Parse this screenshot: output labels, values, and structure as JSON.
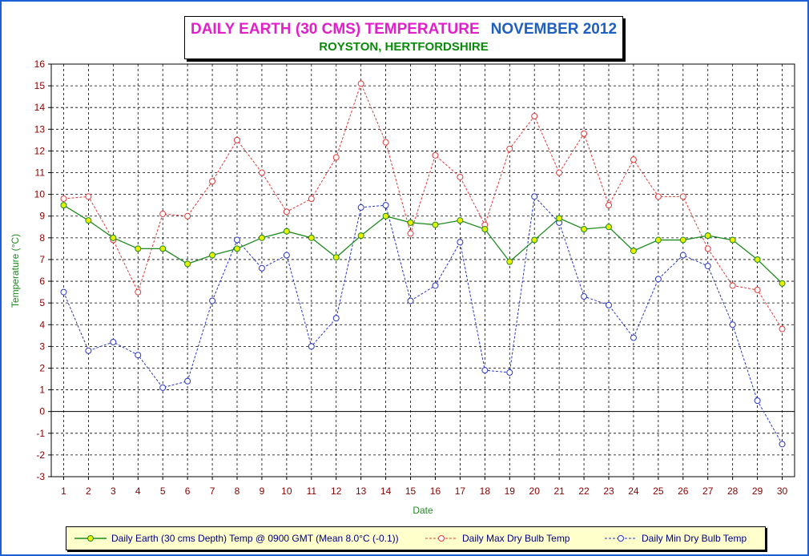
{
  "header": {
    "title_main": "DAILY EARTH (30 CMS) TEMPERATURE",
    "title_month": "NOVEMBER 2012",
    "subtitle": "ROYSTON, HERTFORDSHIRE"
  },
  "colors": {
    "frame": "#1e5fd6",
    "earth": "#1f8a1f",
    "earth_marker_fill": "#e8f000",
    "max": "#e03a3a",
    "min": "#2a35c8",
    "tick_text": "#8a0000",
    "axis_title": "#1f8a1f",
    "legend_bg": "#ffffcc",
    "legend_text": "#000080"
  },
  "chart_data": {
    "type": "line",
    "xlabel": "Date",
    "ylabel": "Temperature (°C)",
    "x": [
      1,
      2,
      3,
      4,
      5,
      6,
      7,
      8,
      9,
      10,
      11,
      12,
      13,
      14,
      15,
      16,
      17,
      18,
      19,
      20,
      21,
      22,
      23,
      24,
      25,
      26,
      27,
      28,
      29,
      30
    ],
    "xlim": [
      1,
      30
    ],
    "ylim": [
      -3,
      16
    ],
    "yticks": [
      -3,
      -2,
      -1,
      0,
      1,
      2,
      3,
      4,
      5,
      6,
      7,
      8,
      9,
      10,
      11,
      12,
      13,
      14,
      15,
      16
    ],
    "grid": true,
    "legend_position": "bottom",
    "series": [
      {
        "name": "Daily Earth (30 cms Depth) Temp @ 0900 GMT (Mean 8.0°C (-0.1))",
        "color": "#1f8a1f",
        "style": "solid",
        "marker_fill": "#e8f000",
        "values": [
          9.5,
          8.8,
          8.0,
          7.5,
          7.5,
          6.8,
          7.2,
          7.5,
          8.0,
          8.3,
          8.0,
          7.1,
          8.1,
          9.0,
          8.7,
          8.6,
          8.8,
          8.4,
          6.9,
          7.9,
          8.9,
          8.4,
          8.5,
          7.4,
          7.9,
          7.9,
          8.1,
          7.9,
          7.0,
          5.9
        ]
      },
      {
        "name": "Daily Max Dry Bulb Temp",
        "color": "#e03a3a",
        "style": "dashed",
        "marker_fill": "#ffffff",
        "values": [
          9.8,
          9.9,
          7.9,
          5.5,
          9.1,
          9.0,
          10.6,
          12.5,
          11.0,
          9.2,
          9.8,
          11.7,
          15.1,
          12.4,
          8.2,
          11.8,
          10.8,
          8.6,
          12.1,
          13.6,
          11.0,
          12.8,
          9.5,
          11.6,
          9.9,
          9.9,
          7.5,
          5.8,
          5.6,
          3.8
        ]
      },
      {
        "name": "Daily Min Dry Bulb Temp",
        "color": "#2a35c8",
        "style": "dashed",
        "marker_fill": "#ffffff",
        "values": [
          5.5,
          2.8,
          3.2,
          2.6,
          1.1,
          1.4,
          5.1,
          7.9,
          6.6,
          7.2,
          3.0,
          4.3,
          9.4,
          9.5,
          5.1,
          5.8,
          7.8,
          1.9,
          1.8,
          9.9,
          8.7,
          5.3,
          4.9,
          3.4,
          6.1,
          7.2,
          6.7,
          4.0,
          0.5,
          -1.5
        ]
      }
    ]
  }
}
